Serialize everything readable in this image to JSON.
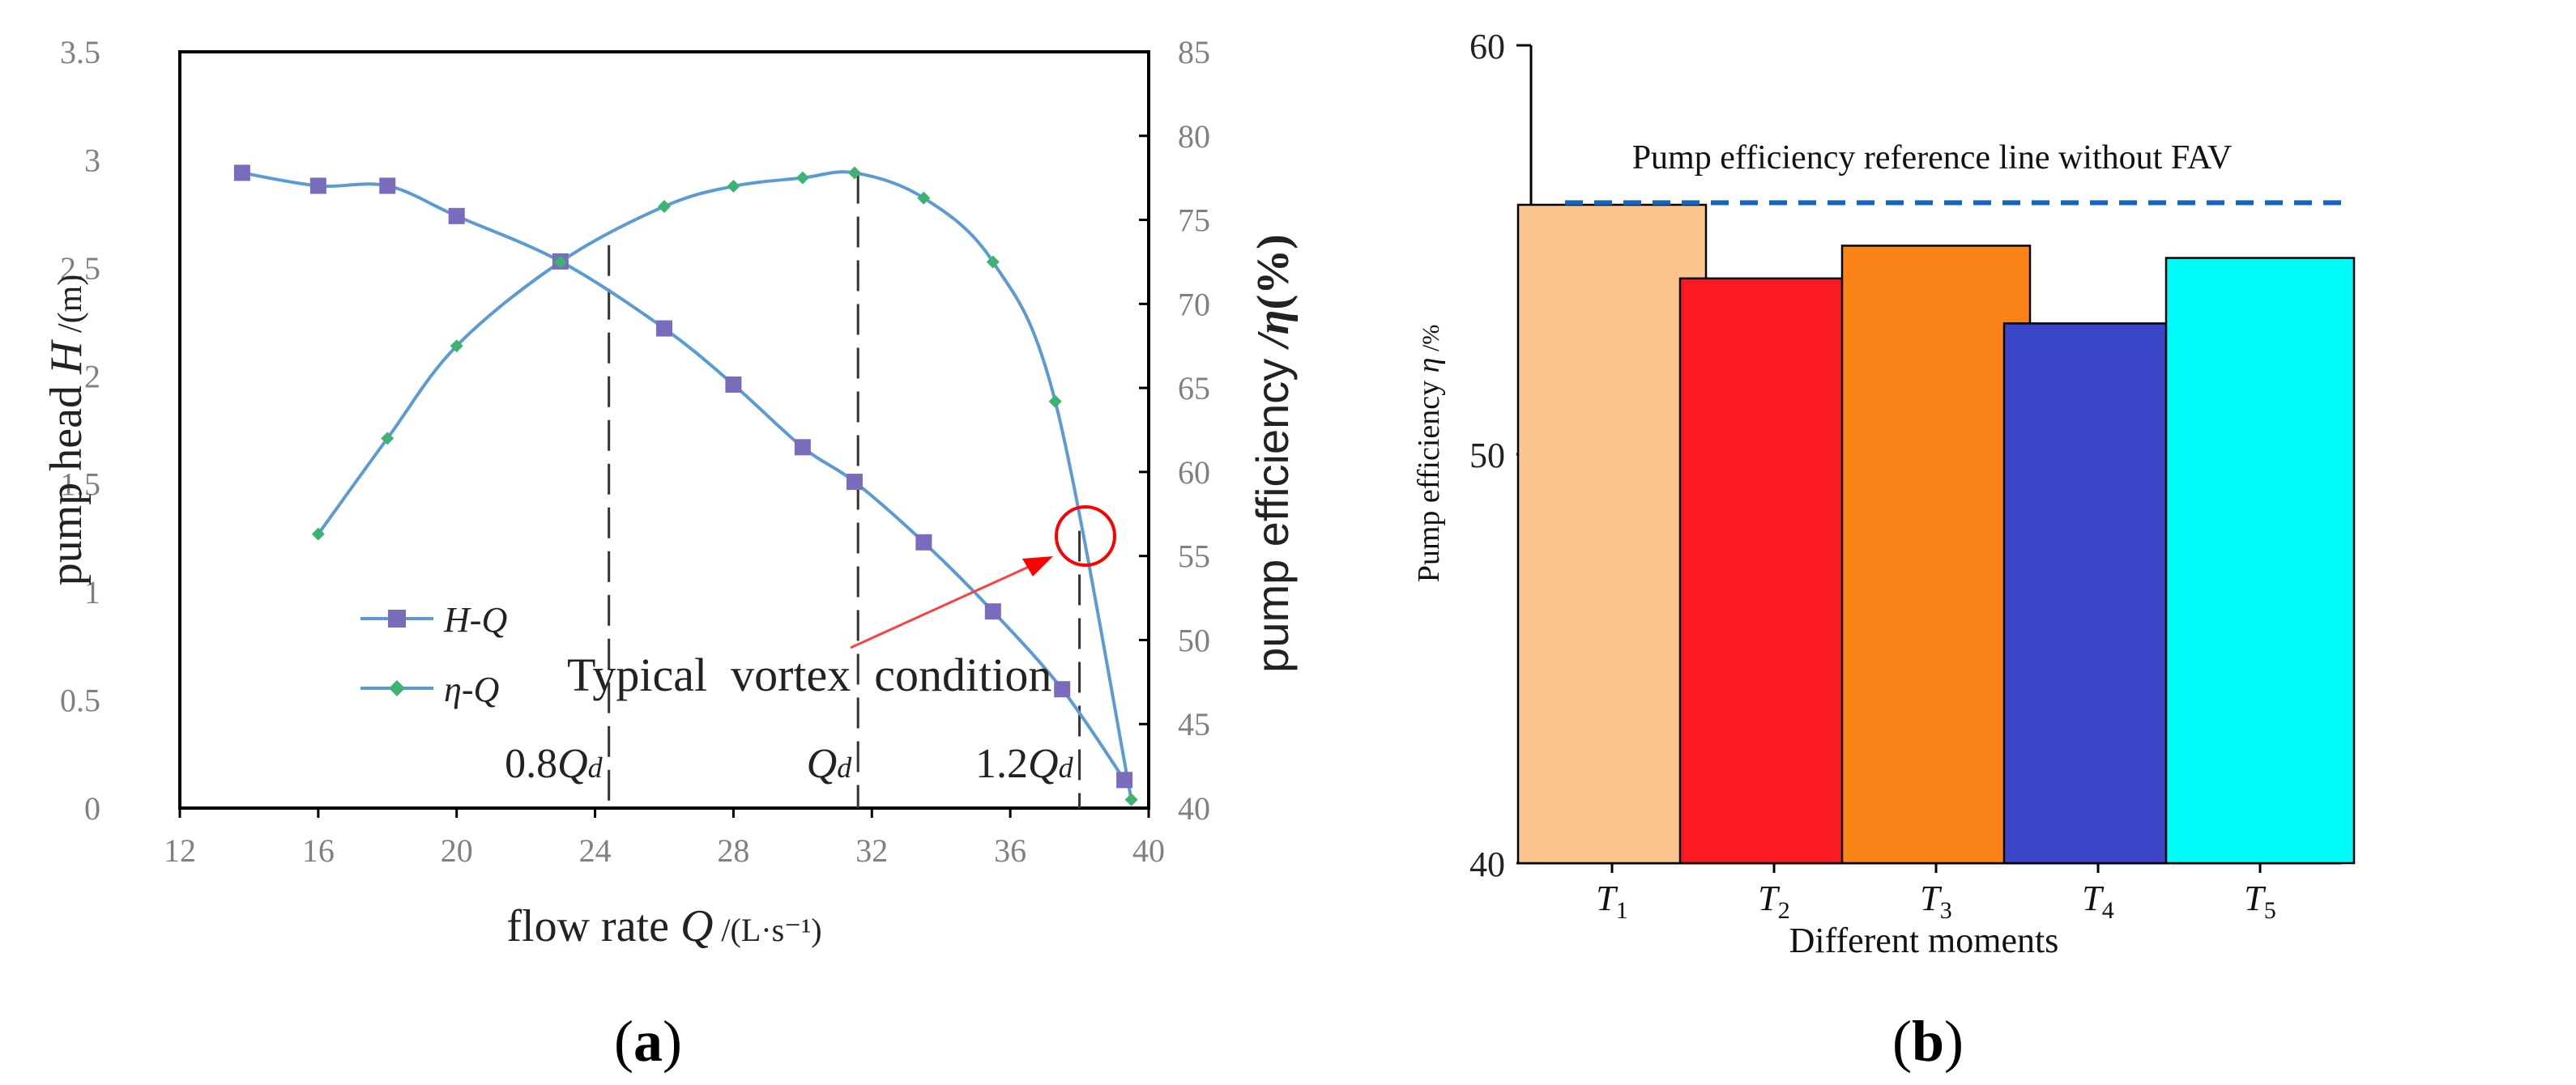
{
  "chart_data": [
    {
      "type": "line",
      "panel_label": "a",
      "xlabel": "flow rate",
      "xlabel_symbol": "Q",
      "xlabel_unit": " /(L·s⁻¹)",
      "ylabel_left": "pump head",
      "ylabel_left_symbol": "H",
      "ylabel_left_unit": " /(m)",
      "ylabel_right": "pump efficiency",
      "ylabel_right_symbol": " /η",
      "ylabel_right_unit": "(%)",
      "xlim": [
        12,
        40
      ],
      "ylim_left": [
        0,
        3.5
      ],
      "ylim_right": [
        40,
        85
      ],
      "x_ticks": [
        "12",
        "16",
        "20",
        "24",
        "28",
        "32",
        "36",
        "40"
      ],
      "y_left_ticks": [
        "0",
        "0.5",
        "1",
        "1.5",
        "2",
        "2.5",
        "3",
        "3.5"
      ],
      "y_right_ticks": [
        "40",
        "45",
        "50",
        "55",
        "60",
        "65",
        "70",
        "75",
        "80",
        "85"
      ],
      "series": [
        {
          "name": "H-Q",
          "legend_main": "H",
          "legend_sub": "Q",
          "axis": "left",
          "color": "#5b9bd5",
          "marker": "square",
          "marker_color": "#7b6bbd",
          "x": [
            13.8,
            16,
            18,
            20,
            23,
            26,
            28,
            30,
            31.5,
            33.5,
            35.5,
            37.5,
            39.3
          ],
          "y": [
            2.94,
            2.88,
            2.88,
            2.74,
            2.53,
            2.22,
            1.96,
            1.67,
            1.51,
            1.23,
            0.91,
            0.55,
            0.13
          ]
        },
        {
          "name": "η-Q",
          "legend_main": "η",
          "legend_sub": "Q",
          "axis": "right",
          "color": "#5b9bd5",
          "marker": "diamond",
          "marker_color": "#3cb371",
          "x": [
            16,
            18,
            20,
            23,
            26,
            28,
            30,
            31.5,
            33.5,
            35.5,
            37.3,
            39.5
          ],
          "y": [
            56.3,
            62,
            67.5,
            72.5,
            75.8,
            77,
            77.5,
            77.8,
            76.3,
            72.5,
            64.2,
            40.5
          ]
        }
      ],
      "reference_lines": [
        {
          "x": 24.4,
          "label_prefix": "0.8",
          "label_symbol": "Q",
          "label_sub": "d"
        },
        {
          "x": 31.6,
          "label_prefix": "",
          "label_symbol": "Q",
          "label_sub": "d"
        },
        {
          "x": 38.0,
          "label_prefix": "1.2",
          "label_symbol": "Q",
          "label_sub": "d"
        }
      ],
      "annotation": {
        "text": "Typical  vortex  condition",
        "target_x": 38.0,
        "target_y_right": 56.5,
        "circle_color": "#ff0000",
        "arrow_color": "#ff4040"
      }
    },
    {
      "type": "bar",
      "panel_label": "b",
      "xlabel": "Different moments",
      "ylabel": "Pump efficiency",
      "ylabel_symbol": "η",
      "ylabel_unit": " /%",
      "ylim": [
        40,
        60
      ],
      "y_ticks": [
        "40",
        "50",
        "60"
      ],
      "categories": [
        {
          "main": "T",
          "sub": "1"
        },
        {
          "main": "T",
          "sub": "2"
        },
        {
          "main": "T",
          "sub": "3"
        },
        {
          "main": "T",
          "sub": "4"
        },
        {
          "main": "T",
          "sub": "5"
        }
      ],
      "values": [
        56.1,
        54.3,
        55.1,
        53.2,
        54.8
      ],
      "colors": [
        "#fcc48f",
        "#fc1a22",
        "#fc8318",
        "#3a45c8",
        "#00fcf8"
      ],
      "reference_line": {
        "value": 56.15,
        "label": "Pump efficiency reference line without FAV",
        "color": "#1565c0"
      }
    }
  ]
}
